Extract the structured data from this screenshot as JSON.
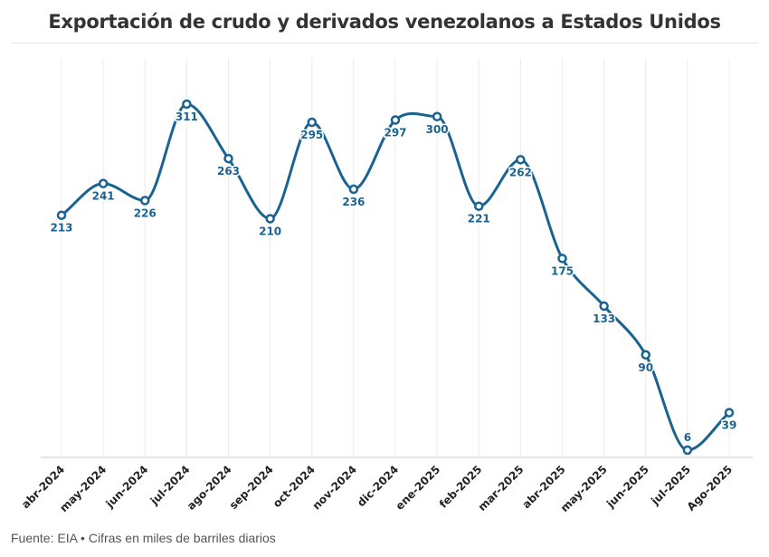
{
  "title": "Exportación de crudo y derivados venezolanos a Estados Unidos",
  "footer": "Fuente: EIA • Cifras en miles de barriles diarios",
  "chart_data": {
    "type": "line",
    "title": "Exportación de crudo y derivados venezolanos a Estados Unidos",
    "categories": [
      "abr-2024",
      "may-2024",
      "jun-2024",
      "jul-2024",
      "ago-2024",
      "sep-2024",
      "oct-2024",
      "nov-2024",
      "dic-2024",
      "ene-2025",
      "feb-2025",
      "mar-2025",
      "abr-2025",
      "may-2025",
      "jun-2025",
      "jul-2025",
      "Ago-2025"
    ],
    "series": [
      {
        "values": [
          213,
          241,
          226,
          311,
          263,
          210,
          295,
          236,
          297,
          300,
          221,
          262,
          175,
          133,
          90,
          6,
          39
        ]
      }
    ],
    "ylim": [
      0,
      315
    ],
    "grid": "vertical",
    "color": "#1a6391",
    "curve": "smooth",
    "data_labels": true
  }
}
